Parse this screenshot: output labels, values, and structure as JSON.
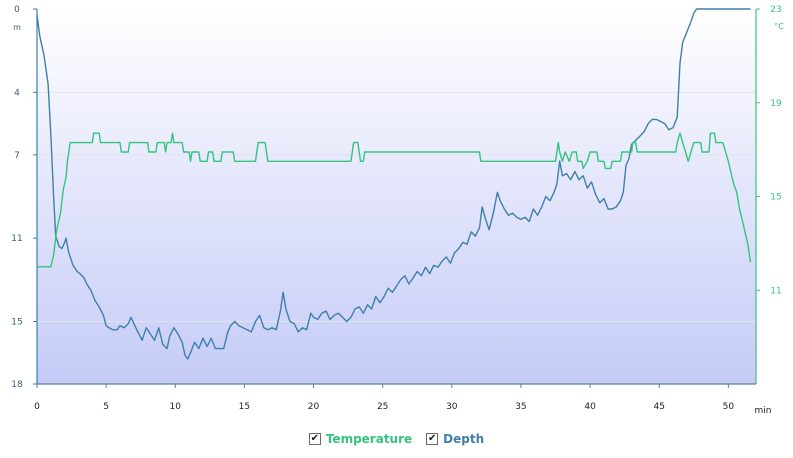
{
  "colors": {
    "depth": "#3e7fab",
    "temperature": "#35c47f",
    "bg_top": "#ffffff",
    "bg_bottom": "#c5cbf7",
    "axis": "#5f7f90",
    "tick_text": "#3d5a75"
  },
  "legend": {
    "temperature_label": "Temperature",
    "depth_label": "Depth",
    "temperature_checked": true,
    "depth_checked": true,
    "check_glyph": "✔"
  },
  "chart_data": {
    "type": "line",
    "xlabel": "min",
    "xlim": [
      0,
      52
    ],
    "x_ticks": [
      0,
      5,
      10,
      15,
      20,
      25,
      30,
      35,
      40,
      45,
      50
    ],
    "y_left": {
      "unit": "m",
      "reversed": true,
      "lim": [
        0,
        18
      ],
      "ticks": [
        0,
        4,
        7,
        11,
        15,
        18
      ]
    },
    "y_right": {
      "unit": "°C",
      "lim": [
        7,
        23
      ],
      "ticks": [
        11,
        15,
        19,
        23
      ]
    },
    "series": [
      {
        "name": "Depth",
        "axis": "left",
        "color": "#3e7fab",
        "points": [
          [
            0,
            0.3
          ],
          [
            0.2,
            1.3
          ],
          [
            0.5,
            2.2
          ],
          [
            0.8,
            3.6
          ],
          [
            1.0,
            6.0
          ],
          [
            1.2,
            9.0
          ],
          [
            1.35,
            10.9
          ],
          [
            1.6,
            11.4
          ],
          [
            1.8,
            11.5
          ],
          [
            2.0,
            11.2
          ],
          [
            2.1,
            11.0
          ],
          [
            2.3,
            11.7
          ],
          [
            2.6,
            12.3
          ],
          [
            2.9,
            12.6
          ],
          [
            3.1,
            12.7
          ],
          [
            3.4,
            12.9
          ],
          [
            3.6,
            13.2
          ],
          [
            3.9,
            13.5
          ],
          [
            4.2,
            14.0
          ],
          [
            4.5,
            14.3
          ],
          [
            4.8,
            14.7
          ],
          [
            5.0,
            15.2
          ],
          [
            5.2,
            15.3
          ],
          [
            5.5,
            15.4
          ],
          [
            5.8,
            15.4
          ],
          [
            6.0,
            15.2
          ],
          [
            6.3,
            15.3
          ],
          [
            6.6,
            15.1
          ],
          [
            6.8,
            14.8
          ],
          [
            7.0,
            15.1
          ],
          [
            7.3,
            15.5
          ],
          [
            7.6,
            15.9
          ],
          [
            7.9,
            15.3
          ],
          [
            8.2,
            15.6
          ],
          [
            8.5,
            15.9
          ],
          [
            8.8,
            15.3
          ],
          [
            9.1,
            16.1
          ],
          [
            9.4,
            16.3
          ],
          [
            9.6,
            15.7
          ],
          [
            9.9,
            15.3
          ],
          [
            10.2,
            15.6
          ],
          [
            10.5,
            16.0
          ],
          [
            10.7,
            16.6
          ],
          [
            10.9,
            16.8
          ],
          [
            11.1,
            16.5
          ],
          [
            11.4,
            16.0
          ],
          [
            11.7,
            16.3
          ],
          [
            12.0,
            15.8
          ],
          [
            12.3,
            16.2
          ],
          [
            12.6,
            15.8
          ],
          [
            12.9,
            16.3
          ],
          [
            13.2,
            16.3
          ],
          [
            13.5,
            16.3
          ],
          [
            13.8,
            15.5
          ],
          [
            14.0,
            15.2
          ],
          [
            14.3,
            15.0
          ],
          [
            14.6,
            15.2
          ],
          [
            14.9,
            15.3
          ],
          [
            15.2,
            15.4
          ],
          [
            15.5,
            15.5
          ],
          [
            15.8,
            15.0
          ],
          [
            16.1,
            14.7
          ],
          [
            16.4,
            15.3
          ],
          [
            16.7,
            15.4
          ],
          [
            17.0,
            15.3
          ],
          [
            17.3,
            15.4
          ],
          [
            17.6,
            14.5
          ],
          [
            17.8,
            13.6
          ],
          [
            18.0,
            14.4
          ],
          [
            18.3,
            15.0
          ],
          [
            18.6,
            15.1
          ],
          [
            18.9,
            15.5
          ],
          [
            19.2,
            15.3
          ],
          [
            19.5,
            15.4
          ],
          [
            19.8,
            14.6
          ],
          [
            20.0,
            14.8
          ],
          [
            20.3,
            14.9
          ],
          [
            20.6,
            14.6
          ],
          [
            20.9,
            14.5
          ],
          [
            21.2,
            14.9
          ],
          [
            21.5,
            14.7
          ],
          [
            21.8,
            14.6
          ],
          [
            22.1,
            14.8
          ],
          [
            22.4,
            15.0
          ],
          [
            22.7,
            14.8
          ],
          [
            23.0,
            14.4
          ],
          [
            23.3,
            14.3
          ],
          [
            23.6,
            14.6
          ],
          [
            23.9,
            14.2
          ],
          [
            24.2,
            14.4
          ],
          [
            24.5,
            13.8
          ],
          [
            24.8,
            14.1
          ],
          [
            25.1,
            13.8
          ],
          [
            25.4,
            13.4
          ],
          [
            25.7,
            13.6
          ],
          [
            26.0,
            13.3
          ],
          [
            26.3,
            13.0
          ],
          [
            26.6,
            12.8
          ],
          [
            26.9,
            13.2
          ],
          [
            27.2,
            12.9
          ],
          [
            27.5,
            12.6
          ],
          [
            27.8,
            12.8
          ],
          [
            28.1,
            12.4
          ],
          [
            28.4,
            12.7
          ],
          [
            28.7,
            12.3
          ],
          [
            29.0,
            12.4
          ],
          [
            29.3,
            12.1
          ],
          [
            29.6,
            11.9
          ],
          [
            29.9,
            12.2
          ],
          [
            30.2,
            11.7
          ],
          [
            30.5,
            11.5
          ],
          [
            30.8,
            11.2
          ],
          [
            31.1,
            11.3
          ],
          [
            31.4,
            10.7
          ],
          [
            31.7,
            10.9
          ],
          [
            32.0,
            10.5
          ],
          [
            32.2,
            9.5
          ],
          [
            32.4,
            10.0
          ],
          [
            32.7,
            10.6
          ],
          [
            33.0,
            9.8
          ],
          [
            33.3,
            8.8
          ],
          [
            33.5,
            9.2
          ],
          [
            33.8,
            9.6
          ],
          [
            34.1,
            9.9
          ],
          [
            34.4,
            9.8
          ],
          [
            34.7,
            10.0
          ],
          [
            35.0,
            10.1
          ],
          [
            35.3,
            10.0
          ],
          [
            35.6,
            10.2
          ],
          [
            35.9,
            9.6
          ],
          [
            36.2,
            9.9
          ],
          [
            36.5,
            9.5
          ],
          [
            36.8,
            9.0
          ],
          [
            37.1,
            9.2
          ],
          [
            37.4,
            8.8
          ],
          [
            37.6,
            8.4
          ],
          [
            37.8,
            7.3
          ],
          [
            38.0,
            8.0
          ],
          [
            38.3,
            7.9
          ],
          [
            38.6,
            8.2
          ],
          [
            38.9,
            7.8
          ],
          [
            39.2,
            8.2
          ],
          [
            39.5,
            8.0
          ],
          [
            39.8,
            8.6
          ],
          [
            40.1,
            8.3
          ],
          [
            40.4,
            8.9
          ],
          [
            40.7,
            9.3
          ],
          [
            41.0,
            9.1
          ],
          [
            41.3,
            9.6
          ],
          [
            41.6,
            9.6
          ],
          [
            41.9,
            9.5
          ],
          [
            42.2,
            9.2
          ],
          [
            42.4,
            8.8
          ],
          [
            42.6,
            7.5
          ],
          [
            42.8,
            7.2
          ],
          [
            43.0,
            6.5
          ],
          [
            43.3,
            6.3
          ],
          [
            43.6,
            6.1
          ],
          [
            43.9,
            5.9
          ],
          [
            44.2,
            5.5
          ],
          [
            44.5,
            5.3
          ],
          [
            44.8,
            5.3
          ],
          [
            45.1,
            5.4
          ],
          [
            45.4,
            5.5
          ],
          [
            45.7,
            5.8
          ],
          [
            46.0,
            5.7
          ],
          [
            46.3,
            5.2
          ],
          [
            46.5,
            2.6
          ],
          [
            46.7,
            1.6
          ],
          [
            47.0,
            1.1
          ],
          [
            47.3,
            0.6
          ],
          [
            47.5,
            0.2
          ],
          [
            47.7,
            0.0
          ],
          [
            48.5,
            0.0
          ],
          [
            50.0,
            0.0
          ],
          [
            51.6,
            0.0
          ]
        ]
      },
      {
        "name": "Temperature",
        "axis": "right",
        "color": "#35c47f",
        "points": [
          [
            0,
            12.0
          ],
          [
            1.0,
            12.0
          ],
          [
            1.2,
            12.5
          ],
          [
            1.4,
            13.5
          ],
          [
            1.7,
            14.3
          ],
          [
            1.9,
            15.3
          ],
          [
            2.1,
            15.8
          ],
          [
            2.2,
            16.5
          ],
          [
            2.4,
            17.3
          ],
          [
            4.0,
            17.3
          ],
          [
            4.1,
            17.7
          ],
          [
            4.5,
            17.7
          ],
          [
            4.6,
            17.3
          ],
          [
            6.0,
            17.3
          ],
          [
            6.1,
            16.9
          ],
          [
            6.6,
            16.9
          ],
          [
            6.7,
            17.3
          ],
          [
            8.0,
            17.3
          ],
          [
            8.1,
            16.9
          ],
          [
            8.6,
            16.9
          ],
          [
            8.7,
            17.3
          ],
          [
            9.2,
            17.3
          ],
          [
            9.3,
            16.9
          ],
          [
            9.4,
            17.3
          ],
          [
            9.7,
            17.3
          ],
          [
            9.8,
            17.7
          ],
          [
            9.9,
            17.3
          ],
          [
            10.5,
            17.3
          ],
          [
            10.6,
            16.9
          ],
          [
            11.0,
            16.9
          ],
          [
            11.1,
            16.5
          ],
          [
            11.2,
            16.9
          ],
          [
            11.7,
            16.9
          ],
          [
            11.8,
            16.5
          ],
          [
            12.3,
            16.5
          ],
          [
            12.4,
            16.9
          ],
          [
            12.7,
            16.9
          ],
          [
            12.8,
            16.5
          ],
          [
            13.3,
            16.5
          ],
          [
            13.4,
            16.9
          ],
          [
            14.2,
            16.9
          ],
          [
            14.3,
            16.5
          ],
          [
            15.8,
            16.5
          ],
          [
            15.9,
            16.9
          ],
          [
            16.0,
            17.3
          ],
          [
            16.5,
            17.3
          ],
          [
            16.6,
            16.9
          ],
          [
            16.7,
            16.5
          ],
          [
            22.7,
            16.5
          ],
          [
            22.8,
            16.9
          ],
          [
            22.9,
            17.3
          ],
          [
            23.2,
            17.3
          ],
          [
            23.3,
            16.9
          ],
          [
            23.4,
            16.5
          ],
          [
            23.6,
            16.5
          ],
          [
            23.7,
            16.9
          ],
          [
            32.0,
            16.9
          ],
          [
            32.1,
            16.5
          ],
          [
            37.5,
            16.5
          ],
          [
            37.6,
            16.9
          ],
          [
            37.7,
            17.3
          ],
          [
            37.8,
            16.9
          ],
          [
            38.0,
            16.5
          ],
          [
            38.2,
            16.9
          ],
          [
            38.5,
            16.5
          ],
          [
            38.7,
            16.9
          ],
          [
            39.0,
            16.9
          ],
          [
            39.1,
            16.5
          ],
          [
            39.4,
            16.5
          ],
          [
            39.5,
            16.2
          ],
          [
            39.8,
            16.5
          ],
          [
            40.0,
            16.9
          ],
          [
            40.5,
            16.9
          ],
          [
            40.6,
            16.5
          ],
          [
            41.0,
            16.5
          ],
          [
            41.1,
            16.2
          ],
          [
            41.5,
            16.2
          ],
          [
            41.6,
            16.5
          ],
          [
            42.2,
            16.5
          ],
          [
            42.3,
            16.9
          ],
          [
            43.0,
            16.9
          ],
          [
            43.1,
            17.3
          ],
          [
            43.3,
            17.3
          ],
          [
            43.4,
            16.9
          ],
          [
            46.2,
            16.9
          ],
          [
            46.3,
            17.3
          ],
          [
            46.5,
            17.7
          ],
          [
            46.7,
            17.3
          ],
          [
            46.9,
            16.9
          ],
          [
            47.1,
            16.5
          ],
          [
            47.3,
            16.9
          ],
          [
            47.5,
            17.3
          ],
          [
            48.0,
            17.3
          ],
          [
            48.1,
            16.9
          ],
          [
            48.6,
            16.9
          ],
          [
            48.7,
            17.7
          ],
          [
            49.0,
            17.7
          ],
          [
            49.1,
            17.3
          ],
          [
            49.6,
            17.3
          ],
          [
            49.8,
            16.9
          ],
          [
            50.0,
            16.5
          ],
          [
            50.2,
            16.0
          ],
          [
            50.4,
            15.5
          ],
          [
            50.6,
            15.2
          ],
          [
            50.8,
            14.5
          ],
          [
            51.0,
            14.0
          ],
          [
            51.2,
            13.5
          ],
          [
            51.4,
            13.0
          ],
          [
            51.6,
            12.2
          ]
        ]
      }
    ]
  }
}
